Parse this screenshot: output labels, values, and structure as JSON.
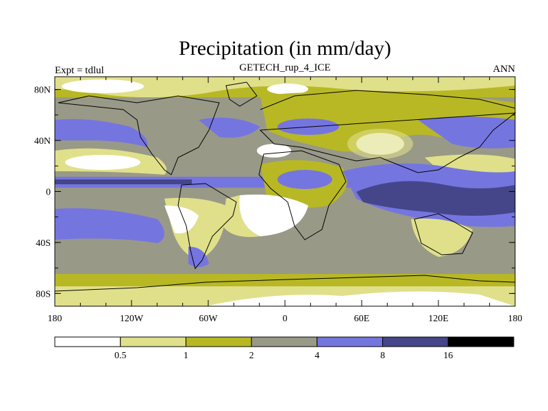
{
  "title": "Precipitation (in mm/day)",
  "subtitle": "GETECH_rup_4_ICE",
  "left_label": "Expt = tdlul",
  "right_label": "ANN",
  "lon_ticks": [
    {
      "value": -180,
      "label": "180"
    },
    {
      "value": -120,
      "label": "120W"
    },
    {
      "value": -60,
      "label": "60W"
    },
    {
      "value": 0,
      "label": "0"
    },
    {
      "value": 60,
      "label": "60E"
    },
    {
      "value": 120,
      "label": "120E"
    },
    {
      "value": 180,
      "label": "180"
    }
  ],
  "lat_ticks": [
    {
      "value": 80,
      "label": "80N"
    },
    {
      "value": 40,
      "label": "40N"
    },
    {
      "value": 0,
      "label": "0"
    },
    {
      "value": -40,
      "label": "40S"
    },
    {
      "value": -80,
      "label": "80S"
    }
  ],
  "lon_range": [
    -180,
    180
  ],
  "lat_range": [
    -90,
    90
  ],
  "colorbar": {
    "colors": [
      "#ffffff",
      "#e0e08a",
      "#b8b825",
      "#999988",
      "#7575e0",
      "#45458a",
      "#000000"
    ],
    "boundaries": [
      {
        "value": 0.5,
        "label": "0.5"
      },
      {
        "value": 1,
        "label": "1"
      },
      {
        "value": 2,
        "label": "2"
      },
      {
        "value": 4,
        "label": "4"
      },
      {
        "value": 8,
        "label": "8"
      },
      {
        "value": 16,
        "label": "16"
      }
    ]
  }
}
